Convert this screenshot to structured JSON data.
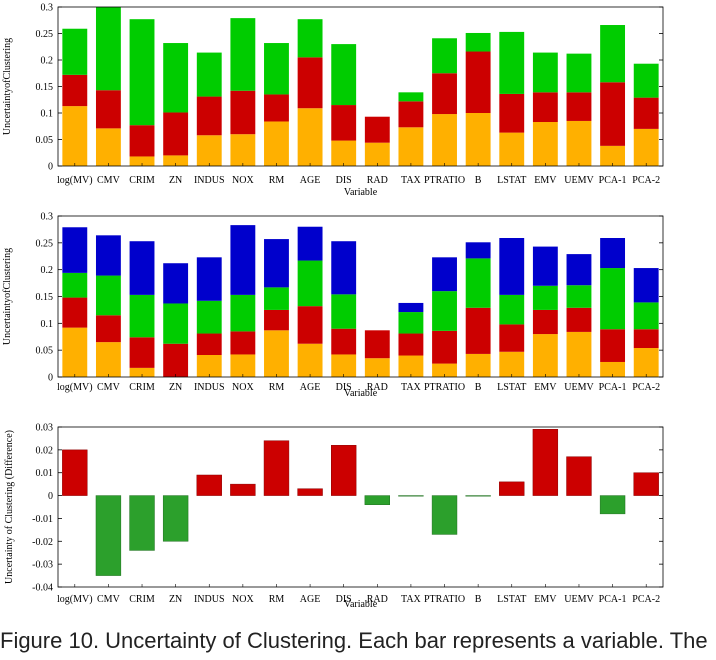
{
  "caption": "Figure 10. Uncertainty of Clustering. Each bar represents a variable. The",
  "chart_data": [
    {
      "type": "bar",
      "stacked": true,
      "categories": [
        "log(MV)",
        "CMV",
        "CRIM",
        "ZN",
        "INDUS",
        "NOX",
        "RM",
        "AGE",
        "DIS",
        "RAD",
        "TAX",
        "PTRATIO",
        "B",
        "LSTAT",
        "EMV",
        "UEMV",
        "PCA-1",
        "PCA-2"
      ],
      "series": [
        {
          "color": "#ffb000",
          "values": [
            0.113,
            0.071,
            0.018,
            0.02,
            0.058,
            0.06,
            0.084,
            0.109,
            0.048,
            0.044,
            0.073,
            0.098,
            0.1,
            0.063,
            0.083,
            0.085,
            0.038,
            0.07
          ]
        },
        {
          "color": "#cc0000",
          "values": [
            0.059,
            0.072,
            0.059,
            0.081,
            0.073,
            0.082,
            0.051,
            0.096,
            0.067,
            0.049,
            0.049,
            0.077,
            0.116,
            0.073,
            0.056,
            0.054,
            0.12,
            0.059
          ]
        },
        {
          "color": "#00cc00",
          "values": [
            0.087,
            0.157,
            0.2,
            0.131,
            0.083,
            0.137,
            0.097,
            0.072,
            0.115,
            0.0,
            0.017,
            0.066,
            0.035,
            0.117,
            0.075,
            0.073,
            0.108,
            0.064
          ]
        }
      ],
      "xlabel": "Variable",
      "ylabel": "UncertaintyofClustering",
      "ylim": [
        0,
        0.3
      ],
      "yticks": [
        0,
        0.05,
        0.1,
        0.15,
        0.2,
        0.25,
        0.3
      ],
      "ytick_labels": [
        "0",
        "0.05",
        "0.1",
        "0.15",
        "0.2",
        "0.25",
        "0.3"
      ]
    },
    {
      "type": "bar",
      "stacked": true,
      "categories": [
        "log(MV)",
        "CMV",
        "CRIM",
        "ZN",
        "INDUS",
        "NOX",
        "RM",
        "AGE",
        "DIS",
        "RAD",
        "TAX",
        "PTRATIO",
        "B",
        "LSTAT",
        "EMV",
        "UEMV",
        "PCA-1",
        "PCA-2"
      ],
      "series": [
        {
          "color": "#ffb000",
          "values": [
            0.092,
            0.065,
            0.017,
            0.0,
            0.041,
            0.042,
            0.087,
            0.062,
            0.042,
            0.035,
            0.04,
            0.025,
            0.043,
            0.047,
            0.08,
            0.084,
            0.028,
            0.054
          ]
        },
        {
          "color": "#cc0000",
          "values": [
            0.056,
            0.05,
            0.057,
            0.062,
            0.04,
            0.043,
            0.038,
            0.07,
            0.048,
            0.052,
            0.041,
            0.061,
            0.086,
            0.051,
            0.045,
            0.045,
            0.061,
            0.035
          ]
        },
        {
          "color": "#00cc00",
          "values": [
            0.046,
            0.074,
            0.079,
            0.075,
            0.061,
            0.068,
            0.042,
            0.085,
            0.064,
            0.0,
            0.04,
            0.074,
            0.092,
            0.055,
            0.045,
            0.042,
            0.114,
            0.05
          ]
        },
        {
          "color": "#0000cc",
          "values": [
            0.085,
            0.075,
            0.1,
            0.075,
            0.081,
            0.13,
            0.09,
            0.063,
            0.099,
            0.0,
            0.017,
            0.063,
            0.03,
            0.106,
            0.073,
            0.058,
            0.056,
            0.064
          ]
        }
      ],
      "xlabel": "Variable",
      "ylabel": "UncertaintyofClustering",
      "ylim": [
        0,
        0.3
      ],
      "yticks": [
        0,
        0.05,
        0.1,
        0.15,
        0.2,
        0.25,
        0.3
      ],
      "ytick_labels": [
        "0",
        "0.05",
        "0.1",
        "0.15",
        "0.2",
        "0.25",
        "0.3"
      ]
    },
    {
      "type": "bar",
      "categories": [
        "log(MV)",
        "CMV",
        "CRIM",
        "ZN",
        "INDUS",
        "NOX",
        "RM",
        "AGE",
        "DIS",
        "RAD",
        "TAX",
        "PTRATIO",
        "B",
        "LSTAT",
        "EMV",
        "UEMV",
        "PCA-1",
        "PCA-2"
      ],
      "values": [
        0.02,
        -0.035,
        -0.024,
        -0.02,
        0.009,
        0.005,
        0.024,
        0.003,
        0.022,
        -0.004,
        -0.0002,
        -0.017,
        -0.0002,
        0.006,
        0.029,
        0.017,
        -0.008,
        0.01
      ],
      "positive_color": "#cc0000",
      "negative_color": "#2ca02c",
      "xlabel": "Variable",
      "ylabel": "Uncertainty of Clustering (Difference)",
      "ylim": [
        -0.04,
        0.03
      ],
      "yticks": [
        -0.04,
        -0.03,
        -0.02,
        -0.01,
        0,
        0.01,
        0.02,
        0.03
      ],
      "ytick_labels": [
        "-0.04",
        "-0.03",
        "-0.02",
        "-0.01",
        "0",
        "0.01",
        "0.02",
        "0.03"
      ]
    }
  ]
}
